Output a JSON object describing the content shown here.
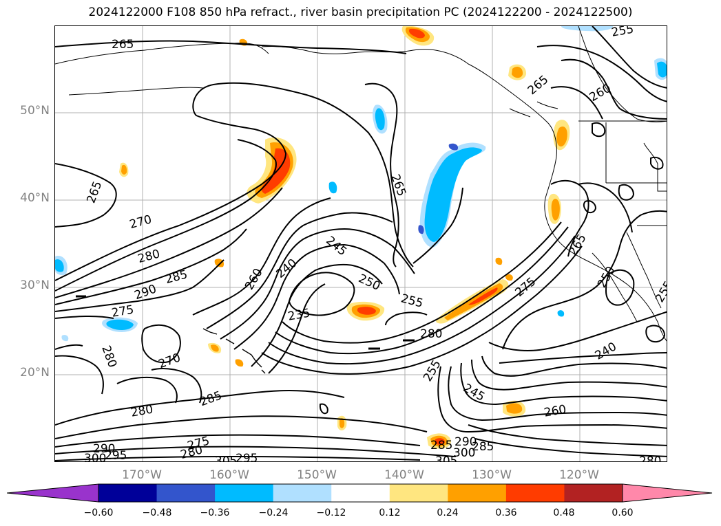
{
  "title": "2024122000 F108 850 hPa refract., river basin precipitation PC (2024122200 - 2024122500)",
  "map": {
    "projection": "lat-lon",
    "lon_range": [
      -180,
      -110
    ],
    "lat_range": [
      10,
      60
    ],
    "lat_ticks": [
      "50°N",
      "40°N",
      "30°N",
      "20°N"
    ],
    "lon_ticks": [
      "170°W",
      "160°W",
      "150°W",
      "140°W",
      "130°W",
      "120°W"
    ],
    "grid": true,
    "contour_labels": [
      "265",
      "265",
      "265",
      "270",
      "280",
      "285",
      "290",
      "275",
      "280",
      "270",
      "285",
      "280",
      "290",
      "300",
      "295",
      "280",
      "275",
      "305",
      "295",
      "260",
      "240",
      "245",
      "250",
      "255",
      "235",
      "265",
      "255",
      "280",
      "255",
      "245",
      "260",
      "275",
      "265",
      "250",
      "240",
      "260",
      "255",
      "280",
      "285",
      "290",
      "285",
      "300",
      "305"
    ]
  },
  "colorbar": {
    "ticks": [
      "−0.60",
      "−0.48",
      "−0.36",
      "−0.24",
      "−0.12",
      "0.12",
      "0.24",
      "0.36",
      "0.48",
      "0.60"
    ],
    "colors": [
      "#9933cc",
      "#000099",
      "#3355cc",
      "#00bbff",
      "#b0e0ff",
      "#ffffff",
      "#ffe680",
      "#ffa000",
      "#ff3c00",
      "#b22222",
      "#ff88aa"
    ],
    "extend": "both"
  }
}
